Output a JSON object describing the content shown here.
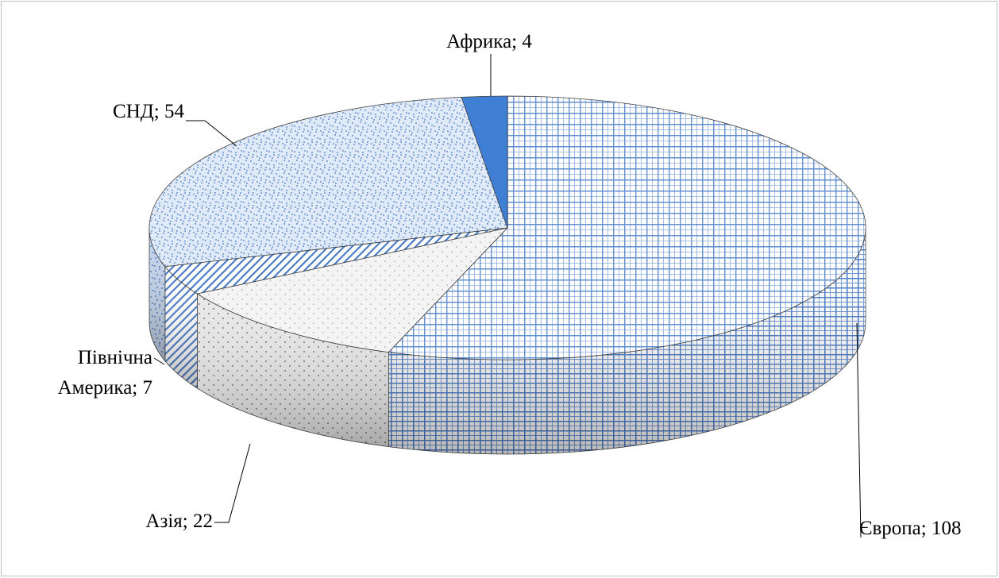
{
  "chart_data": {
    "type": "pie",
    "style": "3d",
    "labels": [
      "Європа",
      "Азія",
      "Північна Америка",
      "СНД",
      "Африка"
    ],
    "values": [
      108,
      22,
      7,
      54,
      4
    ],
    "data_labels": [
      "Європа; 108",
      "Азія; 22",
      "Північна\nАмерика; 7",
      "СНД; 54",
      "Африка; 4"
    ],
    "patterns": [
      "grid",
      "dots-gray",
      "diagonal-stripes",
      "speckle",
      "solid"
    ],
    "colors": {
      "primary": "#4a7cc8",
      "light": "#dfe9f7",
      "solid": "#3f7fd4",
      "side_shadow": "#9c9c9c",
      "outline": "#404040"
    }
  }
}
